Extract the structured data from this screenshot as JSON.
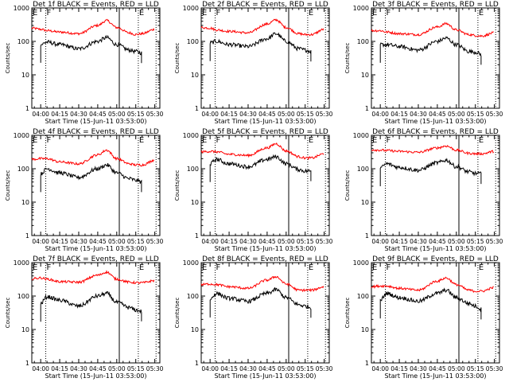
{
  "figure": {
    "x_range": [
      "03:53:00",
      "05:34:00"
    ],
    "x_ticks": [
      "04:00",
      "04:15",
      "04:30",
      "04:45",
      "05:00",
      "05:15",
      "05:30"
    ],
    "y_ticks": [
      "1",
      "10",
      "100",
      "1000"
    ],
    "ylabel": "Counts/sec",
    "xlabel": "Start Time (15-Jun-11 03:53:00)",
    "series_colors": {
      "events": "#000000",
      "lld": "#ff0000"
    },
    "marker_labels": {
      "E": "E",
      "F": "F"
    }
  },
  "chart_data": [
    {
      "type": "line",
      "title": "Det 1f BLACK = Events, RED = LLD",
      "xlabel": "Start Time (15-Jun-11 03:53:00)",
      "ylabel": "Counts/sec",
      "yscale": "log",
      "ylim": [
        1,
        1000
      ],
      "x": [
        "03:53",
        "04:00",
        "04:05",
        "04:15",
        "04:30",
        "04:45",
        "04:52",
        "05:00",
        "05:10",
        "05:15",
        "05:20",
        "05:30"
      ],
      "series": [
        {
          "name": "LLD",
          "values": [
            250,
            230,
            210,
            190,
            170,
            300,
            420,
            260,
            180,
            160,
            170,
            230
          ]
        },
        {
          "name": "Events",
          "values": [
            null,
            80,
            95,
            80,
            60,
            100,
            130,
            80,
            55,
            50,
            45,
            null
          ]
        }
      ],
      "markers": [
        {
          "time": "04:04",
          "style": "dotted",
          "label": "F"
        },
        {
          "time": "05:02",
          "style": "solid"
        },
        {
          "time": "05:17",
          "style": "dotted",
          "label": "E"
        },
        {
          "time": "05:31",
          "style": "dotted"
        }
      ]
    },
    {
      "type": "line",
      "title": "Det 2f BLACK = Events, RED = LLD",
      "xlabel": "Start Time (15-Jun-11 03:53:00)",
      "ylabel": "Counts/sec",
      "yscale": "log",
      "ylim": [
        1,
        1000
      ],
      "x": [
        "03:53",
        "04:00",
        "04:05",
        "04:15",
        "04:30",
        "04:45",
        "04:52",
        "05:00",
        "05:10",
        "05:15",
        "05:20",
        "05:30"
      ],
      "series": [
        {
          "name": "LLD",
          "values": [
            260,
            250,
            220,
            200,
            180,
            330,
            440,
            260,
            170,
            160,
            160,
            230
          ]
        },
        {
          "name": "Events",
          "values": [
            null,
            90,
            100,
            80,
            70,
            120,
            170,
            100,
            60,
            55,
            50,
            null
          ]
        }
      ],
      "markers": [
        {
          "time": "04:04",
          "style": "dotted",
          "label": "F"
        },
        {
          "time": "05:02",
          "style": "solid"
        },
        {
          "time": "05:17",
          "style": "dotted",
          "label": "E"
        },
        {
          "time": "05:31",
          "style": "dotted"
        }
      ]
    },
    {
      "type": "line",
      "title": "Det 3f BLACK = Events, RED = LLD",
      "xlabel": "Start Time (15-Jun-11 03:53:00)",
      "ylabel": "Counts/sec",
      "yscale": "log",
      "ylim": [
        1,
        1000
      ],
      "x": [
        "03:53",
        "04:00",
        "04:05",
        "04:15",
        "04:30",
        "04:45",
        "04:52",
        "05:00",
        "05:10",
        "05:15",
        "05:20",
        "05:30"
      ],
      "series": [
        {
          "name": "LLD",
          "values": [
            210,
            210,
            190,
            170,
            160,
            270,
            340,
            220,
            160,
            150,
            145,
            180
          ]
        },
        {
          "name": "Events",
          "values": [
            null,
            80,
            80,
            70,
            55,
            100,
            125,
            80,
            50,
            48,
            40,
            null
          ]
        }
      ],
      "markers": [
        {
          "time": "04:04",
          "style": "dotted",
          "label": "F"
        },
        {
          "time": "05:02",
          "style": "solid"
        },
        {
          "time": "05:17",
          "style": "dotted",
          "label": "E"
        },
        {
          "time": "05:31",
          "style": "dotted"
        }
      ]
    },
    {
      "type": "line",
      "title": "Det 4f BLACK = Events, RED = LLD",
      "xlabel": "Start Time (15-Jun-11 03:53:00)",
      "ylabel": "Counts/sec",
      "yscale": "log",
      "ylim": [
        1,
        1000
      ],
      "x": [
        "03:53",
        "04:00",
        "04:05",
        "04:15",
        "04:30",
        "04:45",
        "04:52",
        "05:00",
        "05:10",
        "05:15",
        "05:20",
        "05:30"
      ],
      "series": [
        {
          "name": "LLD",
          "values": [
            190,
            200,
            200,
            160,
            140,
            260,
            360,
            200,
            140,
            130,
            130,
            180
          ]
        },
        {
          "name": "Events",
          "values": [
            null,
            70,
            100,
            75,
            55,
            100,
            130,
            75,
            50,
            45,
            40,
            null
          ]
        }
      ],
      "markers": [
        {
          "time": "04:04",
          "style": "dotted",
          "label": "F"
        },
        {
          "time": "05:02",
          "style": "solid"
        },
        {
          "time": "05:17",
          "style": "dotted",
          "label": "E"
        },
        {
          "time": "05:31",
          "style": "dotted"
        }
      ]
    },
    {
      "type": "line",
      "title": "Det 5f BLACK = Events, RED = LLD",
      "xlabel": "Start Time (15-Jun-11 03:53:00)",
      "ylabel": "Counts/sec",
      "yscale": "log",
      "ylim": [
        1,
        1000
      ],
      "x": [
        "03:53",
        "04:00",
        "04:05",
        "04:15",
        "04:30",
        "04:45",
        "04:52",
        "05:00",
        "05:10",
        "05:15",
        "05:20",
        "05:30"
      ],
      "series": [
        {
          "name": "LLD",
          "values": [
            320,
            330,
            320,
            270,
            250,
            420,
            560,
            340,
            230,
            210,
            210,
            280
          ]
        },
        {
          "name": "Events",
          "values": [
            null,
            140,
            190,
            140,
            115,
            190,
            230,
            140,
            95,
            85,
            85,
            null
          ]
        }
      ],
      "markers": [
        {
          "time": "04:04",
          "style": "dotted",
          "label": "F"
        },
        {
          "time": "05:02",
          "style": "solid"
        },
        {
          "time": "05:17",
          "style": "dotted",
          "label": "E"
        },
        {
          "time": "05:31",
          "style": "dotted"
        }
      ]
    },
    {
      "type": "line",
      "title": "Det 6f BLACK = Events, RED = LLD",
      "xlabel": "Start Time (15-Jun-11 03:53:00)",
      "ylabel": "Counts/sec",
      "yscale": "log",
      "ylim": [
        1,
        1000
      ],
      "x": [
        "03:53",
        "04:00",
        "04:05",
        "04:15",
        "04:30",
        "04:45",
        "04:52",
        "05:00",
        "05:10",
        "05:15",
        "05:20",
        "05:30"
      ],
      "series": [
        {
          "name": "LLD",
          "values": [
            370,
            360,
            350,
            330,
            310,
            420,
            480,
            360,
            290,
            280,
            280,
            330
          ]
        },
        {
          "name": "Events",
          "values": [
            null,
            105,
            140,
            110,
            90,
            150,
            180,
            115,
            80,
            72,
            70,
            null
          ]
        }
      ],
      "markers": [
        {
          "time": "04:04",
          "style": "dotted",
          "label": "F"
        },
        {
          "time": "05:02",
          "style": "solid"
        },
        {
          "time": "05:17",
          "style": "dotted",
          "label": "E"
        },
        {
          "time": "05:31",
          "style": "dotted"
        }
      ]
    },
    {
      "type": "line",
      "title": "Det 7f BLACK = Events, RED = LLD",
      "xlabel": "Start Time (15-Jun-11 03:53:00)",
      "ylabel": "Counts/sec",
      "yscale": "log",
      "ylim": [
        1,
        1000
      ],
      "x": [
        "03:53",
        "04:00",
        "04:05",
        "04:15",
        "04:30",
        "04:45",
        "04:52",
        "05:00",
        "05:10",
        "05:15",
        "05:20",
        "05:30"
      ],
      "series": [
        {
          "name": "LLD",
          "values": [
            330,
            350,
            320,
            270,
            260,
            420,
            520,
            320,
            260,
            250,
            250,
            290
          ]
        },
        {
          "name": "Events",
          "values": [
            null,
            60,
            95,
            75,
            50,
            100,
            120,
            65,
            45,
            38,
            35,
            null
          ]
        }
      ],
      "markers": [
        {
          "time": "04:04",
          "style": "dotted",
          "label": "F"
        },
        {
          "time": "05:02",
          "style": "solid"
        },
        {
          "time": "05:17",
          "style": "dotted",
          "label": "E"
        },
        {
          "time": "05:31",
          "style": "dotted"
        }
      ]
    },
    {
      "type": "line",
      "title": "Det 8f BLACK = Events, RED = LLD",
      "xlabel": "Start Time (15-Jun-11 03:53:00)",
      "ylabel": "Counts/sec",
      "yscale": "log",
      "ylim": [
        1,
        1000
      ],
      "x": [
        "03:53",
        "04:00",
        "04:05",
        "04:15",
        "04:30",
        "04:45",
        "04:52",
        "05:00",
        "05:10",
        "05:15",
        "05:20",
        "05:30"
      ],
      "series": [
        {
          "name": "LLD",
          "values": [
            220,
            230,
            220,
            190,
            170,
            300,
            380,
            230,
            150,
            150,
            150,
            190
          ]
        },
        {
          "name": "Events",
          "values": [
            null,
            80,
            120,
            85,
            70,
            120,
            155,
            90,
            55,
            50,
            45,
            null
          ]
        }
      ],
      "markers": [
        {
          "time": "04:04",
          "style": "dotted",
          "label": "F"
        },
        {
          "time": "05:02",
          "style": "solid"
        },
        {
          "time": "05:17",
          "style": "dotted",
          "label": "E"
        },
        {
          "time": "05:31",
          "style": "dotted"
        }
      ]
    },
    {
      "type": "line",
      "title": "Det 9f BLACK = Events, RED = LLD",
      "xlabel": "Start Time (15-Jun-11 03:53:00)",
      "ylabel": "Counts/sec",
      "yscale": "log",
      "ylim": [
        1,
        1000
      ],
      "x": [
        "03:53",
        "04:00",
        "04:05",
        "04:15",
        "04:30",
        "04:45",
        "04:52",
        "05:00",
        "05:10",
        "05:15",
        "05:20",
        "05:30"
      ],
      "series": [
        {
          "name": "LLD",
          "values": [
            190,
            200,
            200,
            170,
            150,
            280,
            350,
            220,
            150,
            140,
            140,
            180
          ]
        },
        {
          "name": "Events",
          "values": [
            null,
            75,
            120,
            90,
            70,
            120,
            150,
            90,
            60,
            50,
            40,
            null
          ]
        }
      ],
      "markers": [
        {
          "time": "04:04",
          "style": "dotted",
          "label": "F"
        },
        {
          "time": "05:02",
          "style": "solid"
        },
        {
          "time": "05:17",
          "style": "dotted",
          "label": "E"
        },
        {
          "time": "05:31",
          "style": "dotted"
        }
      ]
    }
  ]
}
